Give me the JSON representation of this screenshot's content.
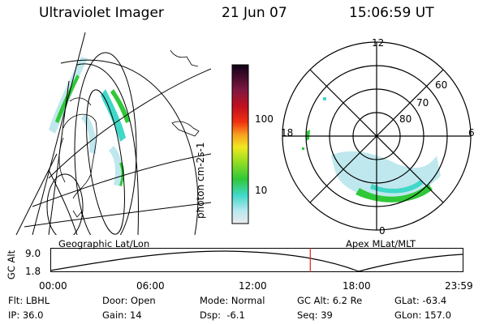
{
  "header": {
    "title": "Ultraviolet Imager",
    "date": "21 Jun 07",
    "time": "15:06:59 UT"
  },
  "colorbar": {
    "label": "photon cm-2s-1",
    "ticks": [
      "100",
      "10"
    ]
  },
  "polar_plot": {
    "mlt_labels": {
      "top": "12",
      "right": "6",
      "bottom": "0",
      "left": "18"
    },
    "lat_labels": [
      "60",
      "70",
      "80"
    ]
  },
  "altitude_panel": {
    "left_title": "Geographic Lat/Lon",
    "right_title": "Apex MLat/MLT",
    "y_axis_label": "GC Alt",
    "y_ticks": [
      "9.0",
      "1.8"
    ],
    "x_ticks": [
      "00:00",
      "06:00",
      "12:00",
      "18:00",
      "23:59"
    ],
    "current_time_marker_hours": 15.12
  },
  "info": {
    "row1": [
      {
        "key": "Flt:",
        "value": "LBHL"
      },
      {
        "key": "Door:",
        "value": "Open"
      },
      {
        "key": "Mode:",
        "value": "Normal"
      },
      {
        "key": "GC Alt:",
        "value": "6.2 Re"
      },
      {
        "key": "GLat:",
        "value": "-63.4"
      }
    ],
    "row2": [
      {
        "key": "IP:",
        "value": "36.0"
      },
      {
        "key": "Gain:",
        "value": "14"
      },
      {
        "key": "Dsp:",
        "value": "  -6.1"
      },
      {
        "key": "Seq:",
        "value": "39"
      },
      {
        "key": "GLon:",
        "value": "157.0"
      }
    ]
  },
  "colors": {
    "marker": "#e02020",
    "aurora_low": "#bfe8ee",
    "aurora_mid": "#40d8c8",
    "aurora_high": "#30c838"
  }
}
